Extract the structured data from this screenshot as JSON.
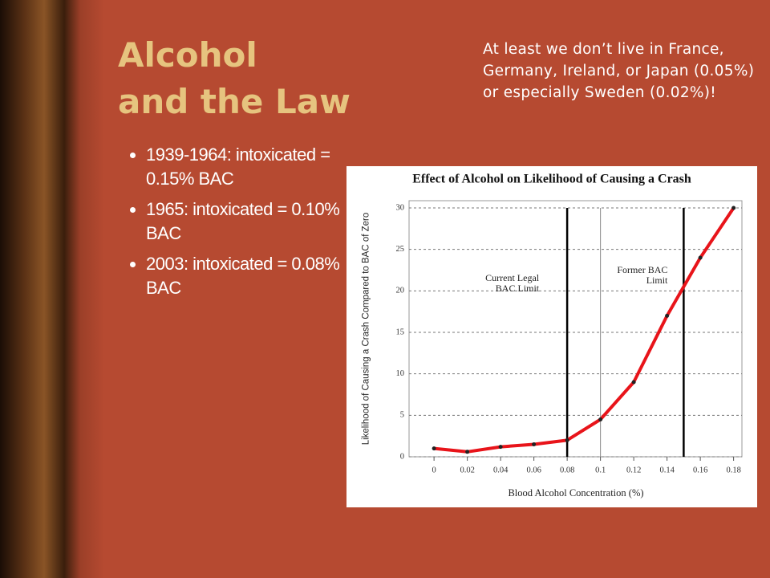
{
  "slide": {
    "title_lines": [
      "Alcohol",
      "and the Law"
    ],
    "note": "At least we don’t live in France, Germany, Ireland, or Japan (0.05%) or especially Sweden (0.02%)!",
    "bullets": [
      "1939-1964: intoxicated = 0.15% BAC",
      "1965: intoxicated = 0.10% BAC",
      "2003: intoxicated = 0.08% BAC"
    ]
  },
  "chart_data": {
    "type": "line",
    "title": "Effect of Alcohol on Likelihood of Causing a Crash",
    "x_label": "Blood Alcohol Concentration (%)",
    "y_label": "Likelihood of Causing a Crash Compared to BAC of Zero",
    "x": [
      0,
      0.02,
      0.04,
      0.06,
      0.08,
      0.1,
      0.12,
      0.14,
      0.16,
      0.18
    ],
    "series": [
      {
        "name": "Likelihood",
        "color": "#e8141a",
        "values": [
          1,
          0.6,
          1.2,
          1.5,
          2,
          4.5,
          9,
          17,
          24,
          30
        ]
      }
    ],
    "xlim": [
      -0.015,
      0.185
    ],
    "ylim": [
      0,
      30
    ],
    "xticks": [
      0,
      0.02,
      0.04,
      0.06,
      0.08,
      0.1,
      0.12,
      0.14,
      0.16,
      0.18
    ],
    "yticks": [
      0,
      5,
      10,
      15,
      20,
      25,
      30
    ],
    "grid": true,
    "reference_lines": [
      {
        "x": 0.08,
        "label": "Current Legal BAC Limit"
      },
      {
        "x": 0.1
      },
      {
        "x": 0.15,
        "label": "Former BAC Limit"
      }
    ]
  }
}
